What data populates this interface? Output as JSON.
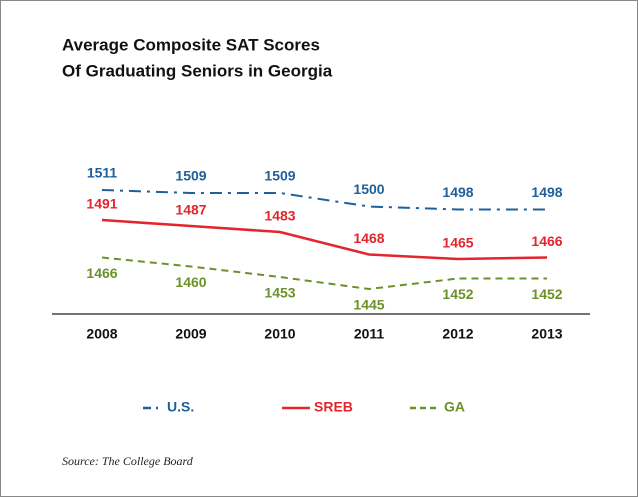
{
  "chart_data": {
    "type": "line",
    "title": [
      "Average Composite SAT Scores",
      "Of Graduating Seniors in Georgia"
    ],
    "categories": [
      "2008",
      "2009",
      "2010",
      "2011",
      "2012",
      "2013"
    ],
    "series": [
      {
        "name": "U.S.",
        "color": "#1f5f9c",
        "dash": "dash-dot",
        "values": [
          1511,
          1509,
          1509,
          1500,
          1498,
          1498
        ]
      },
      {
        "name": "SREB",
        "color": "#e3262d",
        "dash": "solid",
        "values": [
          1491,
          1487,
          1483,
          1468,
          1465,
          1466
        ]
      },
      {
        "name": "GA",
        "color": "#6b9228",
        "dash": "dashed",
        "values": [
          1466,
          1460,
          1453,
          1445,
          1452,
          1452
        ]
      }
    ],
    "source": "Source: The College Board"
  }
}
